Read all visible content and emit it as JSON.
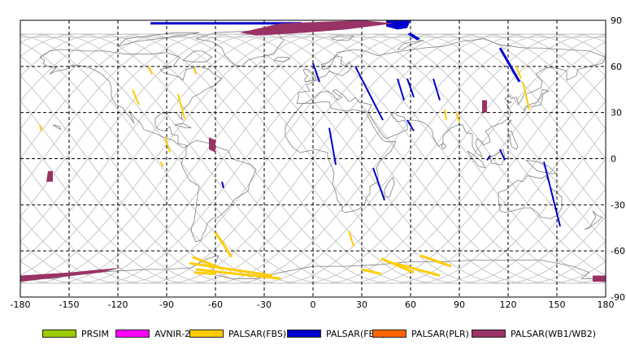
{
  "map": {
    "x_ticks": [
      "-180",
      "-150",
      "-120",
      "-90",
      "-60",
      "-30",
      "0",
      "30",
      "60",
      "90",
      "120",
      "150",
      "180"
    ],
    "y_ticks": [
      "90",
      "60",
      "30",
      "0",
      "-30",
      "-60",
      "-90"
    ],
    "colors": {
      "grid": "#000000",
      "coast": "#808080",
      "orbit": "#c0c0c0",
      "prism": "#99cc00",
      "avnir": "#ff00ff",
      "fbs": "#ffcc00",
      "fbd": "#0000cc",
      "plr": "#ff6600",
      "wb": "#993366"
    }
  },
  "legend": {
    "items": [
      {
        "label": "PRSIM",
        "color": "#99cc00"
      },
      {
        "label": "AVNIR-2",
        "color": "#ff00ff"
      },
      {
        "label": "PALSAR(FBS)",
        "color": "#ffcc00"
      },
      {
        "label": "PALSAR(FBD)",
        "color": "#0000cc"
      },
      {
        "label": "PALSAR(PLR)",
        "color": "#ff6600"
      },
      {
        "label": "PALSAR(WB1/WB2)",
        "color": "#993366"
      }
    ]
  }
}
